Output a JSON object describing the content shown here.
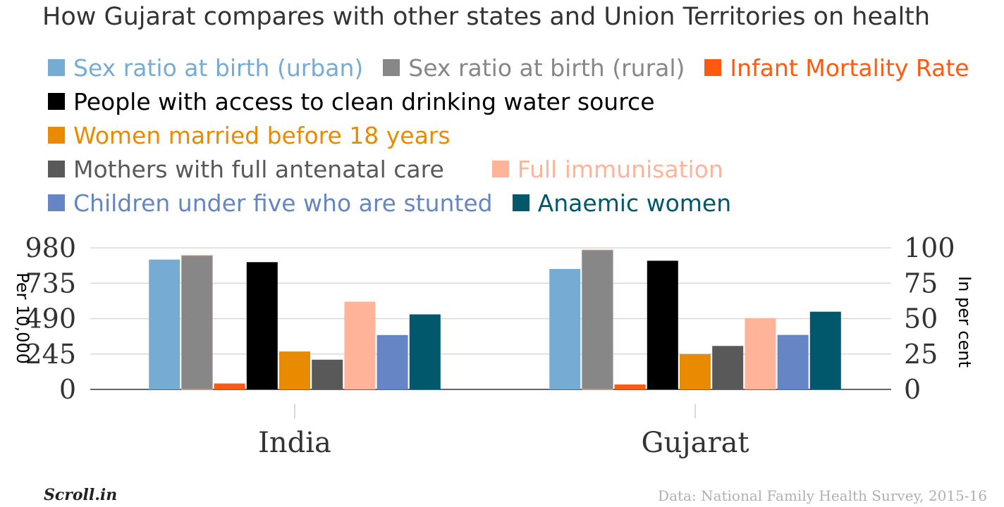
{
  "chart_data": {
    "type": "bar",
    "title": "How Gujarat compares with other states and Union Territories on health",
    "categories": [
      "India",
      "Gujarat"
    ],
    "y_left": {
      "label": "Per 10,000",
      "ticks": [
        "980",
        "735",
        "490",
        "245",
        "0"
      ],
      "range": [
        0,
        980
      ]
    },
    "y_right": {
      "label": "In per cent",
      "ticks": [
        "100",
        "75",
        "50",
        "25",
        "0"
      ],
      "range": [
        0,
        100
      ]
    },
    "grid": true,
    "legend_placement": "top",
    "series": [
      {
        "name": "Sex ratio at birth (urban)",
        "color": "#76acd3",
        "axis": "left",
        "values": [
          899,
          834
        ]
      },
      {
        "name": "Sex ratio at birth (rural)",
        "color": "#878787",
        "axis": "left",
        "values": [
          927,
          965
        ]
      },
      {
        "name": "Infant Mortality Rate",
        "color": "#ff5a0f",
        "axis": "left",
        "values": [
          41,
          34
        ]
      },
      {
        "name": "People with access to clean drinking water source",
        "color": "#000000",
        "axis": "right",
        "values": [
          89.9,
          90.9
        ]
      },
      {
        "name": "Women married before 18 years",
        "color": "#e98b00",
        "axis": "right",
        "values": [
          26.8,
          24.9
        ]
      },
      {
        "name": "Mothers with full antenatal care",
        "color": "#595959",
        "axis": "right",
        "values": [
          21.0,
          30.7
        ]
      },
      {
        "name": "Full immunisation",
        "color": "#ffb499",
        "axis": "right",
        "values": [
          62.0,
          50.4
        ]
      },
      {
        "name": "Children under five who are stunted",
        "color": "#6585c4",
        "axis": "right",
        "values": [
          38.4,
          38.5
        ]
      },
      {
        "name": "Anaemic women",
        "color": "#01576b",
        "axis": "right",
        "values": [
          53.0,
          54.9
        ]
      }
    ]
  },
  "legend_rows": [
    [
      0,
      1,
      2
    ],
    [
      3
    ],
    [
      4
    ],
    [
      5,
      6
    ],
    [
      7,
      8
    ]
  ],
  "legend_text_colors": [
    "#76acd3",
    "#878787",
    "#ff5a0f",
    "#000000",
    "#e98b00",
    "#595959",
    "#ffb499",
    "#6585c4",
    "#01576b"
  ],
  "source": "Data: National Family Health Survey, 2015-16",
  "logo": "Scroll.in"
}
